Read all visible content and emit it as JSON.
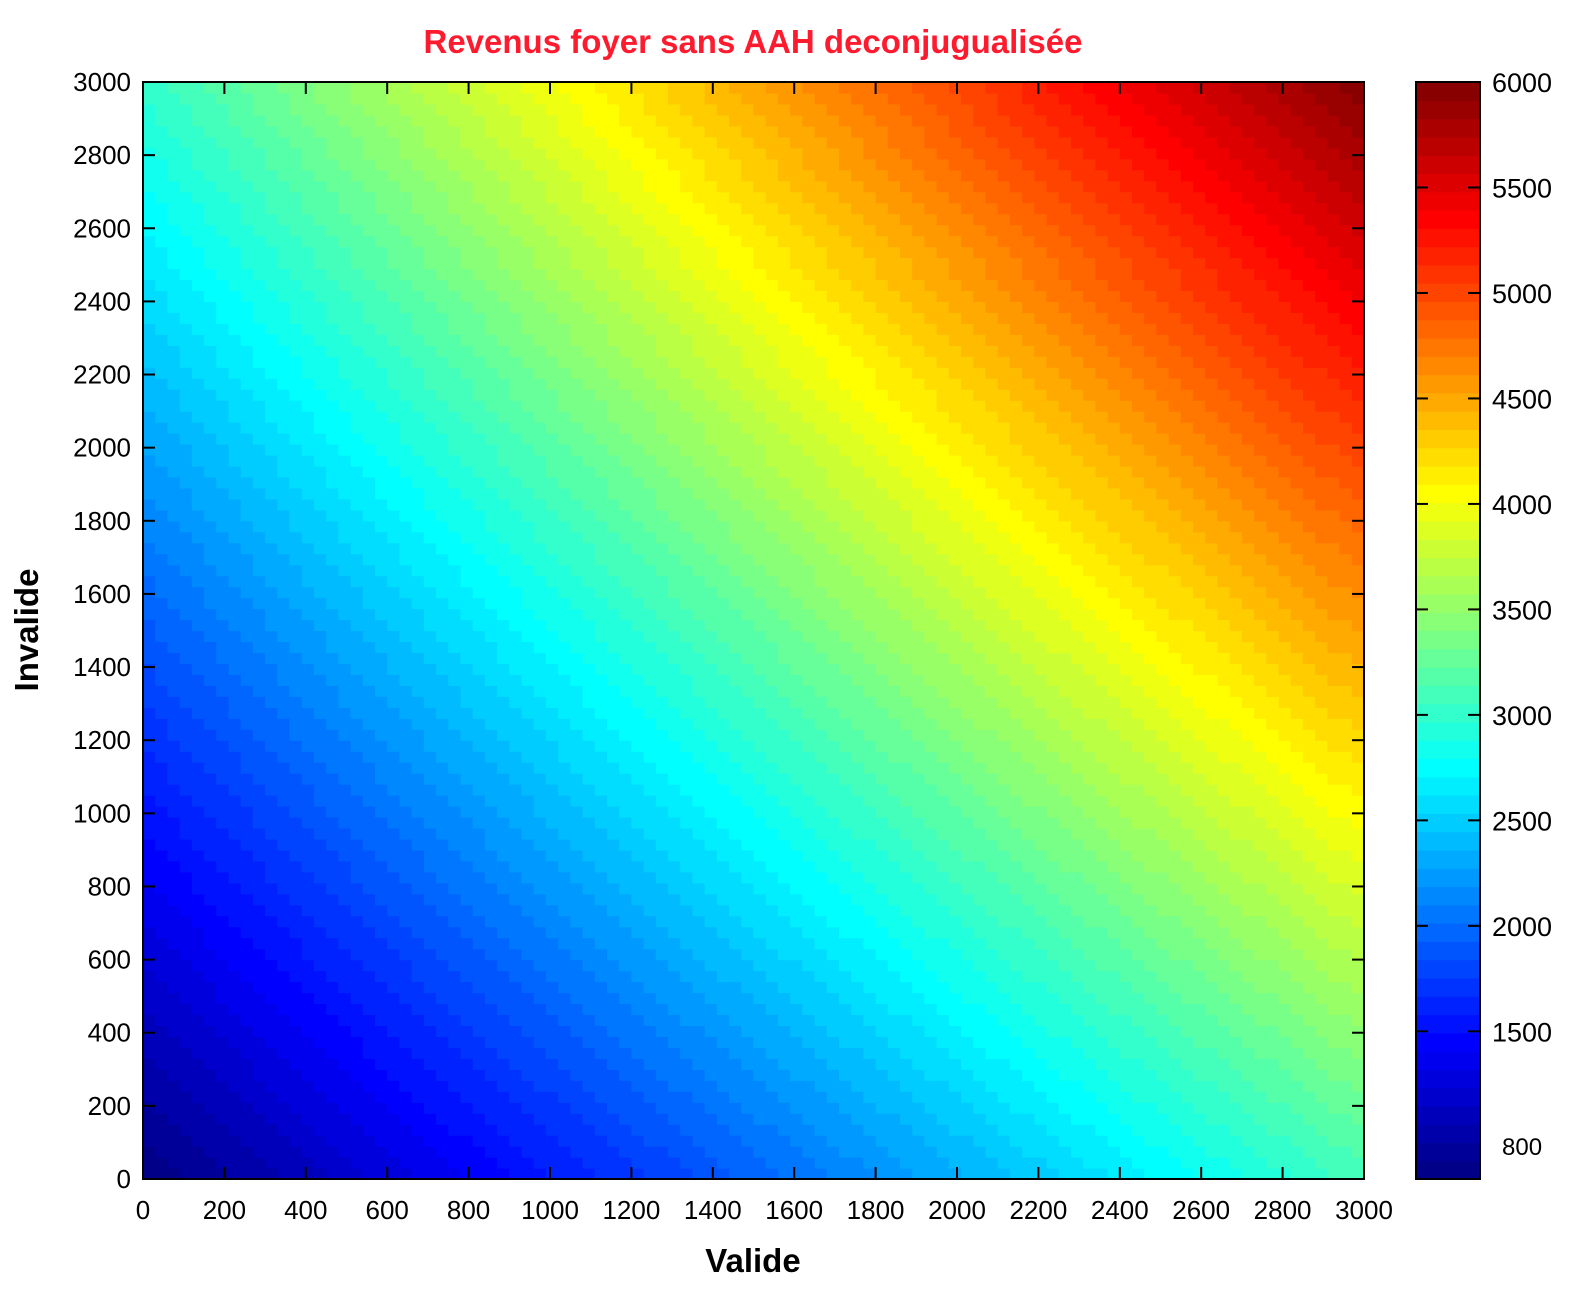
{
  "chart_data": {
    "type": "heatmap",
    "title": "Revenus foyer sans AAH deconjugualisée",
    "title_color": "#ff1a2e",
    "xlabel": "Valide",
    "ylabel": "Invalide",
    "xlim": [
      0,
      3000
    ],
    "ylim": [
      0,
      3000
    ],
    "x_ticks": [
      "0",
      "200",
      "400",
      "600",
      "800",
      "1000",
      "1200",
      "1400",
      "1600",
      "1800",
      "2000",
      "2200",
      "2400",
      "2600",
      "2800",
      "3000"
    ],
    "y_ticks": [
      "0",
      "200",
      "400",
      "600",
      "800",
      "1000",
      "1200",
      "1400",
      "1600",
      "1800",
      "2000",
      "2200",
      "2400",
      "2600",
      "2800",
      "3000"
    ],
    "colorbar": {
      "range": [
        800,
        6000
      ],
      "tick_labels": [
        "6000",
        "5500",
        "5000",
        "4500",
        "4000",
        "3500",
        "3000",
        "2500",
        "2000",
        "1500",
        "800"
      ],
      "levels": 60,
      "colormap": "jet"
    },
    "corner_values": [
      {
        "valide": 0,
        "invalide": 0,
        "value": 800
      },
      {
        "valide": 3000,
        "invalide": 0,
        "value": 3100
      },
      {
        "valide": 0,
        "invalide": 3000,
        "value": 3000
      },
      {
        "valide": 3000,
        "invalide": 3000,
        "value": 6000
      }
    ]
  }
}
